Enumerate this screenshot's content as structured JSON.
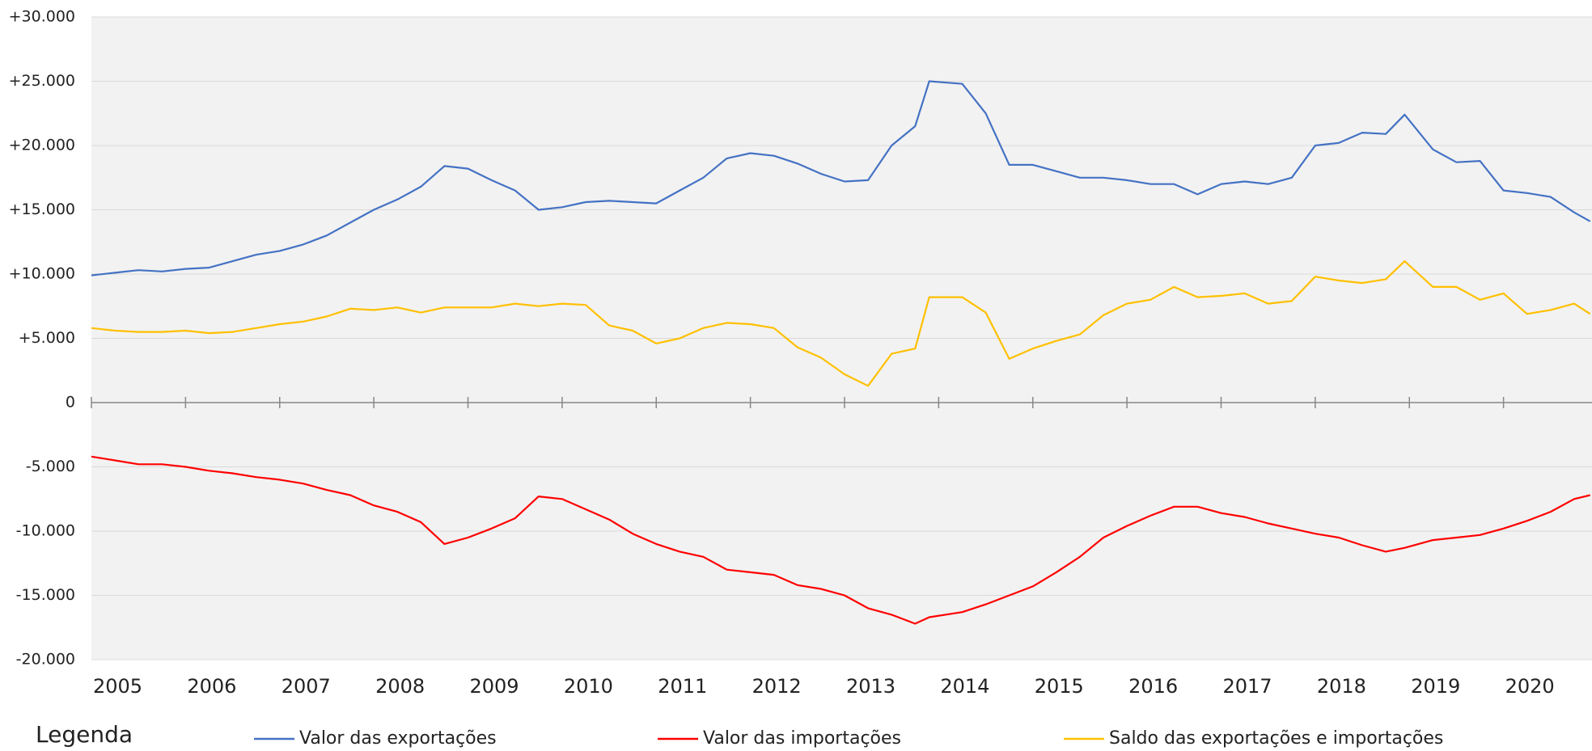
{
  "chart_data": {
    "type": "line",
    "x": [
      2005,
      2005.25,
      2005.5,
      2005.75,
      2006,
      2006.25,
      2006.5,
      2006.75,
      2007,
      2007.25,
      2007.5,
      2007.75,
      2008,
      2008.25,
      2008.5,
      2008.75,
      2009,
      2009.25,
      2009.5,
      2009.75,
      2010,
      2010.25,
      2010.5,
      2010.75,
      2011,
      2011.25,
      2011.5,
      2011.75,
      2012,
      2012.25,
      2012.5,
      2012.75,
      2013,
      2013.25,
      2013.5,
      2013.75,
      2013.9,
      2014.25,
      2014.5,
      2014.75,
      2015,
      2015.25,
      2015.5,
      2015.75,
      2016,
      2016.25,
      2016.5,
      2016.75,
      2017,
      2017.25,
      2017.5,
      2017.75,
      2018,
      2018.25,
      2018.5,
      2018.75,
      2018.95,
      2019.25,
      2019.5,
      2019.75,
      2020,
      2020.25,
      2020.5,
      2020.75,
      2020.92
    ],
    "series": [
      {
        "name": "Valor das exportações",
        "color": "#4472c4",
        "values": [
          9900,
          10100,
          10300,
          10200,
          10400,
          10500,
          11000,
          11500,
          11800,
          12300,
          13000,
          14000,
          15000,
          15800,
          16800,
          18400,
          18200,
          17300,
          16500,
          15000,
          15200,
          15600,
          15700,
          15600,
          15500,
          16500,
          17500,
          19000,
          19400,
          19200,
          18600,
          17800,
          17200,
          17300,
          20000,
          21500,
          25000,
          24800,
          22500,
          18500,
          18500,
          18000,
          17500,
          17500,
          17300,
          17000,
          17000,
          16200,
          17000,
          17200,
          17000,
          17500,
          20000,
          20200,
          21000,
          20900,
          22400,
          19700,
          18700,
          18800,
          16500,
          16300,
          16000,
          14800,
          14100
        ]
      },
      {
        "name": "Valor das importações",
        "color": "#ff0000",
        "values": [
          -4200,
          -4500,
          -4800,
          -4800,
          -5000,
          -5300,
          -5500,
          -5800,
          -6000,
          -6300,
          -6800,
          -7200,
          -8000,
          -8500,
          -9300,
          -11000,
          -10500,
          -9800,
          -9000,
          -7300,
          -7500,
          -8300,
          -9100,
          -10200,
          -11000,
          -11600,
          -12000,
          -13000,
          -13200,
          -13400,
          -14200,
          -14500,
          -15000,
          -16000,
          -16500,
          -17200,
          -16700,
          -16300,
          -15700,
          -15000,
          -14300,
          -13200,
          -12000,
          -10500,
          -9600,
          -8800,
          -8100,
          -8100,
          -8600,
          -8900,
          -9400,
          -9800,
          -10200,
          -10500,
          -11100,
          -11600,
          -11300,
          -10700,
          -10500,
          -10300,
          -9800,
          -9200,
          -8500,
          -7500,
          -7200
        ]
      },
      {
        "name": "Saldo das exportações e importações",
        "color": "#ffc000",
        "values": [
          5800,
          5600,
          5500,
          5500,
          5600,
          5400,
          5500,
          5800,
          6100,
          6300,
          6700,
          7300,
          7200,
          7400,
          7000,
          7400,
          7400,
          7400,
          7700,
          7500,
          7700,
          7600,
          6000,
          5600,
          4600,
          5000,
          5800,
          6200,
          6100,
          5800,
          4300,
          3500,
          2200,
          1300,
          3800,
          4200,
          8200,
          8200,
          7000,
          3400,
          4200,
          4800,
          5300,
          6800,
          7700,
          8000,
          9000,
          8200,
          8300,
          8500,
          7700,
          7900,
          9800,
          9500,
          9300,
          9600,
          11000,
          9000,
          9000,
          8000,
          8500,
          6900,
          7200,
          7700,
          6900
        ]
      }
    ],
    "xlim": [
      2005,
      2020.94
    ],
    "xticks": [
      2005,
      2006,
      2007,
      2008,
      2009,
      2010,
      2011,
      2012,
      2013,
      2014,
      2015,
      2016,
      2017,
      2018,
      2019,
      2020
    ],
    "ylim": [
      -20000,
      30000
    ],
    "yticks": [
      {
        "value": -20000,
        "label": "-20.000"
      },
      {
        "value": -15000,
        "label": "-15.000"
      },
      {
        "value": -10000,
        "label": "-10.000"
      },
      {
        "value": -5000,
        "label": "-5.000"
      },
      0,
      {
        "value": 5000,
        "label": "+5.000"
      },
      {
        "value": 10000,
        "label": "+10.000"
      },
      {
        "value": 15000,
        "label": "+15.000"
      },
      {
        "value": 20000,
        "label": "+20.000"
      },
      {
        "value": 25000,
        "label": "+25.000"
      },
      {
        "value": 30000,
        "label": "+30.000"
      }
    ],
    "grid": true,
    "legend_title": "Legenda",
    "legend": "bottom"
  }
}
